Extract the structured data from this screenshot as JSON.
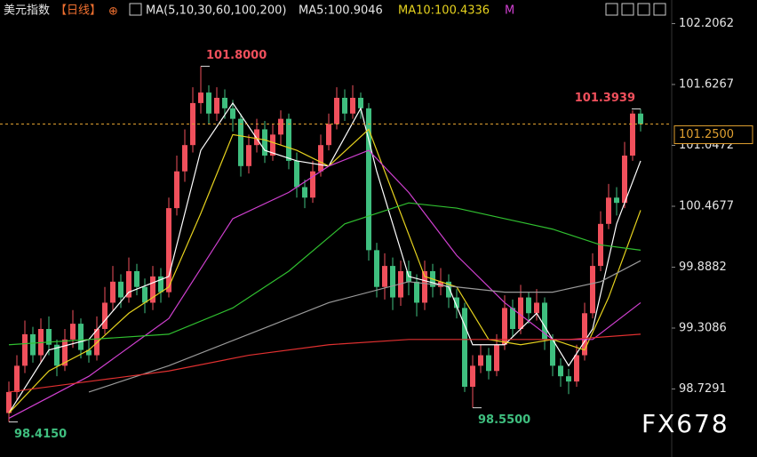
{
  "chart_data": {
    "type": "candlestick",
    "title": "美元指数",
    "period": "【日线】",
    "ma_label": "MA(5,10,30,60,100,200)",
    "ma5_label": "MA5:100.9046",
    "ma10_label": "MA10:100.4336",
    "ma_more": "M",
    "watermark": "FX678",
    "up_color": "#f0505c",
    "down_color": "#3fbf7f",
    "ylim": [
      98.2,
      102.38
    ],
    "yticks": [
      102.2062,
      101.6267,
      101.0472,
      100.4677,
      99.8882,
      99.3086,
      98.7291
    ],
    "current_price": {
      "value": 101.25,
      "label": "101.2500"
    },
    "open": [
      98.5,
      98.7,
      98.95,
      99.25,
      99.05,
      99.3,
      99.15,
      98.95,
      99.2,
      99.35,
      99.1,
      99.05,
      99.3,
      99.55,
      99.75,
      99.6,
      99.85,
      99.7,
      99.55,
      99.8,
      99.65,
      100.45,
      100.8,
      101.05,
      101.45,
      101.55,
      101.35,
      101.5,
      101.4,
      101.3,
      100.85,
      101.05,
      101.2,
      100.95,
      101.15,
      101.3,
      100.9,
      100.65,
      100.55,
      100.8,
      101.05,
      101.25,
      101.5,
      101.35,
      101.5,
      101.4,
      100.05,
      99.7,
      99.9,
      99.6,
      99.85,
      99.75,
      99.55,
      99.85,
      99.7,
      99.75,
      99.6,
      99.5,
      98.75,
      98.95,
      99.05,
      98.9,
      99.15,
      99.5,
      99.3,
      99.6,
      99.45,
      99.55,
      99.2,
      98.95,
      98.85,
      98.8,
      99.05,
      99.45,
      99.9,
      100.3,
      100.55,
      100.5,
      100.95,
      101.35
    ],
    "high": [
      98.8,
      99.05,
      99.38,
      99.32,
      99.4,
      99.42,
      99.2,
      99.3,
      99.48,
      99.4,
      99.2,
      99.42,
      99.7,
      99.9,
      99.82,
      99.98,
      99.92,
      99.78,
      99.9,
      99.88,
      100.55,
      100.95,
      101.2,
      101.6,
      101.8,
      101.62,
      101.6,
      101.58,
      101.48,
      101.35,
      101.15,
      101.3,
      101.28,
      101.25,
      101.38,
      101.35,
      100.98,
      100.72,
      100.9,
      101.15,
      101.35,
      101.6,
      101.58,
      101.62,
      101.55,
      101.45,
      100.12,
      100.02,
      99.98,
      99.95,
      99.95,
      99.82,
      99.95,
      99.92,
      99.88,
      99.82,
      99.68,
      99.55,
      99.05,
      99.15,
      99.12,
      99.25,
      99.62,
      99.58,
      99.72,
      99.65,
      99.68,
      99.6,
      99.25,
      99.02,
      98.92,
      99.15,
      99.55,
      100.02,
      100.42,
      100.68,
      100.65,
      101.08,
      101.38,
      101.3939
    ],
    "low": [
      98.415,
      98.62,
      98.88,
      98.98,
      98.98,
      99.05,
      98.85,
      98.9,
      99.12,
      99.02,
      98.98,
      99.0,
      99.25,
      99.48,
      99.5,
      99.55,
      99.62,
      99.45,
      99.48,
      99.55,
      99.6,
      100.38,
      100.7,
      100.98,
      101.35,
      101.25,
      101.28,
      101.3,
      101.18,
      100.75,
      100.78,
      100.98,
      100.88,
      100.9,
      101.05,
      100.82,
      100.55,
      100.45,
      100.5,
      100.75,
      101.0,
      101.2,
      101.28,
      101.3,
      101.3,
      99.95,
      99.6,
      99.58,
      99.48,
      99.52,
      99.62,
      99.42,
      99.48,
      99.6,
      99.62,
      99.5,
      99.4,
      98.7,
      98.55,
      98.88,
      98.82,
      98.85,
      99.1,
      99.22,
      99.25,
      99.35,
      99.38,
      99.1,
      98.85,
      98.75,
      98.68,
      98.75,
      99.0,
      99.4,
      99.85,
      100.25,
      100.38,
      100.45,
      100.9,
      101.18
    ],
    "close": [
      98.7,
      98.95,
      99.25,
      99.05,
      99.3,
      99.15,
      98.95,
      99.2,
      99.35,
      99.1,
      99.05,
      99.3,
      99.55,
      99.75,
      99.6,
      99.85,
      99.7,
      99.55,
      99.8,
      99.65,
      100.45,
      100.8,
      101.05,
      101.45,
      101.55,
      101.35,
      101.5,
      101.4,
      101.3,
      100.85,
      101.05,
      101.2,
      100.95,
      101.15,
      101.3,
      100.9,
      100.65,
      100.55,
      100.8,
      101.05,
      101.25,
      101.5,
      101.35,
      101.5,
      101.4,
      100.05,
      99.7,
      99.9,
      99.6,
      99.85,
      99.75,
      99.55,
      99.85,
      99.7,
      99.75,
      99.6,
      99.5,
      98.75,
      98.95,
      99.05,
      98.9,
      99.15,
      99.5,
      99.3,
      99.6,
      99.45,
      99.55,
      99.2,
      98.95,
      98.85,
      98.8,
      99.05,
      99.45,
      99.9,
      100.3,
      100.55,
      100.5,
      100.95,
      101.35,
      101.25
    ],
    "ma_lines": [
      {
        "color": "#ffffff",
        "x": [
          0,
          5,
          10,
          15,
          20,
          24,
          28,
          32,
          36,
          40,
          44,
          46,
          50,
          55,
          58,
          62,
          66,
          70,
          73,
          76,
          79
        ],
        "values": [
          98.5,
          99.1,
          99.2,
          99.65,
          99.8,
          101.0,
          101.45,
          101.0,
          100.9,
          100.85,
          101.4,
          100.8,
          99.8,
          99.7,
          99.15,
          99.15,
          99.45,
          98.95,
          99.3,
          100.3,
          100.9
        ]
      },
      {
        "color": "#e6d21e",
        "x": [
          0,
          5,
          10,
          15,
          20,
          24,
          28,
          32,
          36,
          40,
          45,
          48,
          52,
          56,
          60,
          64,
          68,
          72,
          75,
          79
        ],
        "values": [
          98.5,
          98.9,
          99.1,
          99.45,
          99.7,
          100.4,
          101.15,
          101.1,
          101.0,
          100.85,
          101.2,
          100.6,
          99.8,
          99.7,
          99.2,
          99.15,
          99.2,
          99.1,
          99.6,
          100.43
        ]
      },
      {
        "color": "#d040d0",
        "x": [
          0,
          10,
          20,
          28,
          35,
          40,
          45,
          50,
          56,
          62,
          68,
          73,
          79
        ],
        "values": [
          98.45,
          98.85,
          99.4,
          100.35,
          100.6,
          100.85,
          101.0,
          100.6,
          100.0,
          99.55,
          99.2,
          99.2,
          99.55
        ]
      },
      {
        "color": "#30c030",
        "x": [
          0,
          10,
          20,
          28,
          35,
          42,
          50,
          56,
          62,
          68,
          74,
          79
        ],
        "values": [
          99.15,
          99.2,
          99.25,
          99.5,
          99.85,
          100.3,
          100.5,
          100.45,
          100.35,
          100.25,
          100.1,
          100.05
        ]
      },
      {
        "color": "#9a9a9a",
        "x": [
          10,
          20,
          30,
          40,
          50,
          56,
          62,
          68,
          74,
          79
        ],
        "values": [
          98.7,
          98.95,
          99.25,
          99.55,
          99.75,
          99.7,
          99.65,
          99.65,
          99.75,
          99.95
        ]
      },
      {
        "color": "#e03030",
        "x": [
          0,
          10,
          20,
          30,
          40,
          50,
          60,
          70,
          79
        ],
        "values": [
          98.7,
          98.8,
          98.9,
          99.05,
          99.15,
          99.2,
          99.2,
          99.2,
          99.25
        ]
      }
    ],
    "annotations": [
      {
        "x": 24,
        "value": 101.8,
        "label": "101.8000",
        "color": "#f0505c",
        "side": "right",
        "pos": "high"
      },
      {
        "x": 79,
        "value": 101.3939,
        "label": "101.3939",
        "color": "#f0505c",
        "side": "left",
        "pos": "high"
      },
      {
        "x": 58,
        "value": 98.55,
        "label": "98.5500",
        "color": "#3fbf7f",
        "side": "right",
        "pos": "low"
      },
      {
        "x": 0,
        "value": 98.415,
        "label": "98.4150",
        "color": "#3fbf7f",
        "side": "right",
        "pos": "low"
      }
    ]
  }
}
